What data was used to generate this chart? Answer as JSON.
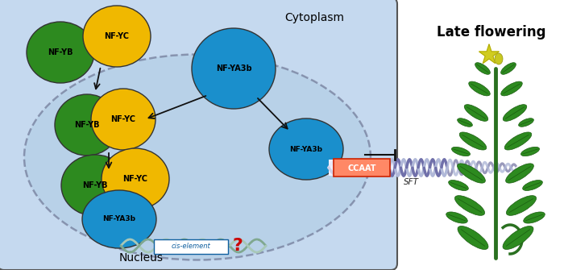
{
  "bg_color": "#FFFFFF",
  "cell_bg": "#C5D9EF",
  "nucleus_bg": "#AAC8E0",
  "green_color": "#2D8A1F",
  "yellow_color": "#F0B800",
  "blue_color": "#1A8FCC",
  "dark_blue_color": "#1070AA",
  "red_color": "#CC2200",
  "dna_color_dark": "#7070AA",
  "dna_color_light": "#B0B8D8",
  "cytoplasm_label": "Cytoplasm",
  "nucleus_label": "Nucleus",
  "late_flowering_label": "Late flowering",
  "ccaat_label": "CCAAT",
  "sft_label": "SFT",
  "cis_label": "cis-element",
  "nfyb_label": "NF-YB",
  "nfyc_label": "NF-YC",
  "nfya_label": "NF-YA3b"
}
